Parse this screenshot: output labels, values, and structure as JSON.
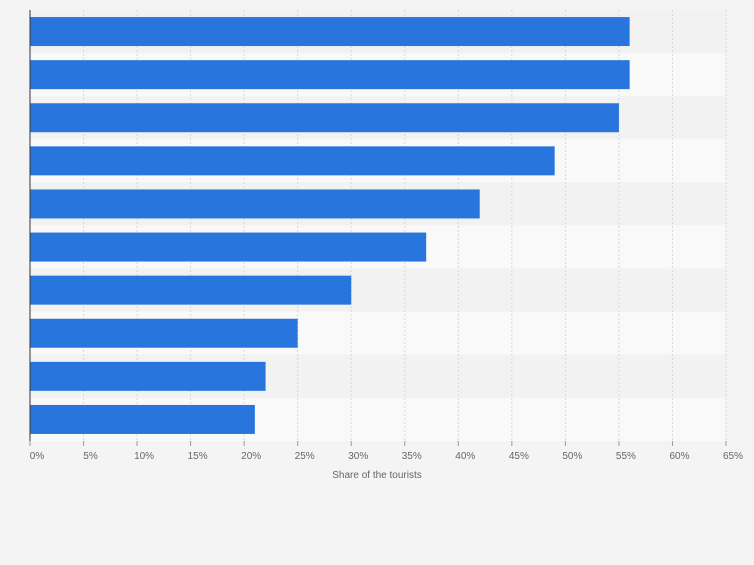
{
  "chart_data": {
    "type": "bar",
    "orientation": "horizontal",
    "categories": [
      "",
      "",
      "",
      "",
      "",
      "",
      "",
      "",
      "",
      ""
    ],
    "values": [
      56,
      56,
      55,
      49,
      42,
      37,
      30,
      25,
      22,
      21
    ],
    "title": "",
    "xlabel": "Share of the tourists",
    "ylabel": "",
    "xlim": [
      0,
      65
    ],
    "tick_values": [
      0,
      5,
      10,
      15,
      20,
      25,
      30,
      35,
      40,
      45,
      50,
      55,
      60,
      65
    ],
    "tick_labels": [
      "0%",
      "5%",
      "10%",
      "15%",
      "20%",
      "25%",
      "30%",
      "35%",
      "40%",
      "45%",
      "50%",
      "55%",
      "60%",
      "65%"
    ],
    "grid": true,
    "legend": "none",
    "colors": {
      "bar": "#2876dd",
      "background": "#f4f4f4",
      "band_light": "#f9f9f9",
      "band_dark": "#f2f2f2",
      "grid": "#d8d8d8",
      "axis": "#333333",
      "tick_text": "#666666"
    }
  }
}
